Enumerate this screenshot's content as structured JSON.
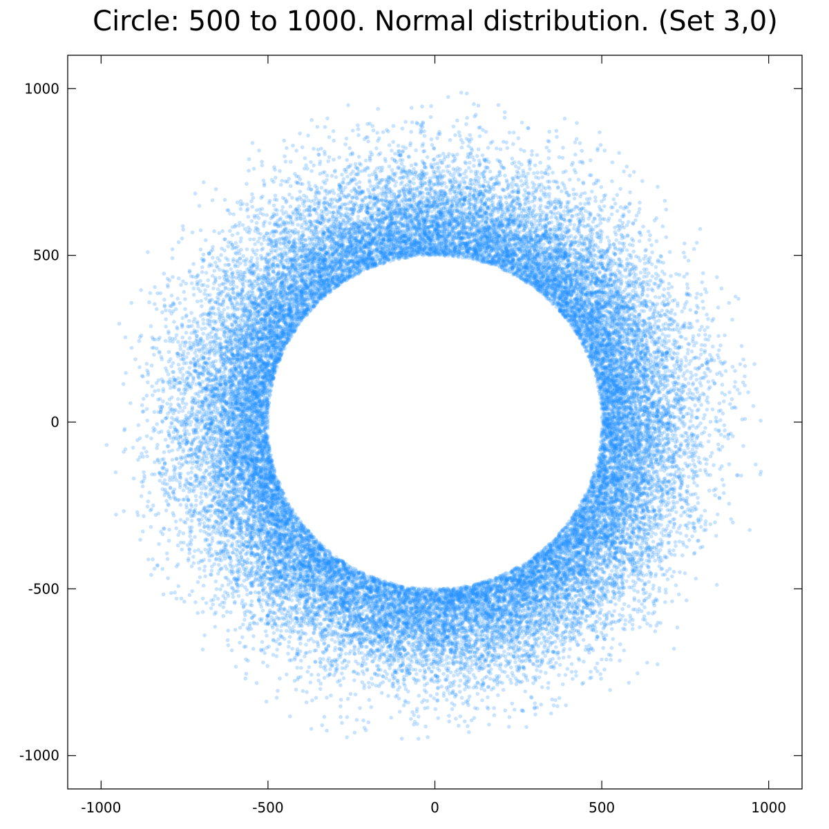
{
  "chart_data": {
    "type": "scatter",
    "title": "Circle: 500 to 1000. Normal distribution. (Set 3,0)",
    "xlabel": "",
    "ylabel": "",
    "xlim": [
      -1100,
      1100
    ],
    "ylim": [
      -1100,
      1100
    ],
    "x_ticks": [
      "-1000",
      "-500",
      "0",
      "500",
      "1000"
    ],
    "y_ticks": [
      "1000",
      "500",
      "0",
      "-500",
      "-1000"
    ],
    "grid": false,
    "legend": "none",
    "point_color": "#1e90ff",
    "point_alpha": 0.25,
    "annulus": {
      "inner_radius": 500,
      "outer_radius_nominal": 1000,
      "radial_distribution": "normal",
      "approx_max_radius": 1000,
      "approx_point_count": 30000
    }
  }
}
